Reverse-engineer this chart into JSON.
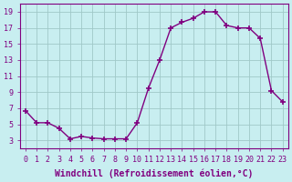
{
  "x": [
    0,
    1,
    2,
    3,
    4,
    5,
    6,
    7,
    8,
    9,
    10,
    11,
    12,
    13,
    14,
    15,
    16,
    17,
    18,
    19,
    20,
    21,
    22,
    23
  ],
  "y": [
    6.7,
    5.2,
    5.2,
    4.5,
    3.2,
    3.5,
    3.3,
    3.2,
    3.2,
    3.2,
    5.2,
    9.5,
    13.0,
    17.0,
    17.7,
    18.2,
    19.0,
    19.0,
    17.3,
    17.0,
    17.0,
    15.7,
    9.2,
    7.8
  ],
  "line_color": "#800080",
  "marker": "+",
  "marker_size": 4,
  "marker_linewidth": 1.2,
  "background_color": "#c8eef0",
  "grid_color": "#a0c8c8",
  "xlabel": "Windchill (Refroidissement éolien,°C)",
  "xlabel_fontsize": 7.0,
  "yticks": [
    3,
    5,
    7,
    9,
    11,
    13,
    15,
    17,
    19
  ],
  "xtick_labels": [
    "0",
    "1",
    "2",
    "3",
    "4",
    "5",
    "6",
    "7",
    "8",
    "9",
    "10",
    "11",
    "12",
    "13",
    "14",
    "15",
    "16",
    "17",
    "18",
    "19",
    "20",
    "21",
    "22",
    "23"
  ],
  "xlim": [
    -0.5,
    23.5
  ],
  "ylim": [
    2.0,
    20.0
  ],
  "tick_fontsize": 6.0,
  "tick_color": "#800080",
  "spine_color": "#800080",
  "linewidth": 1.0
}
